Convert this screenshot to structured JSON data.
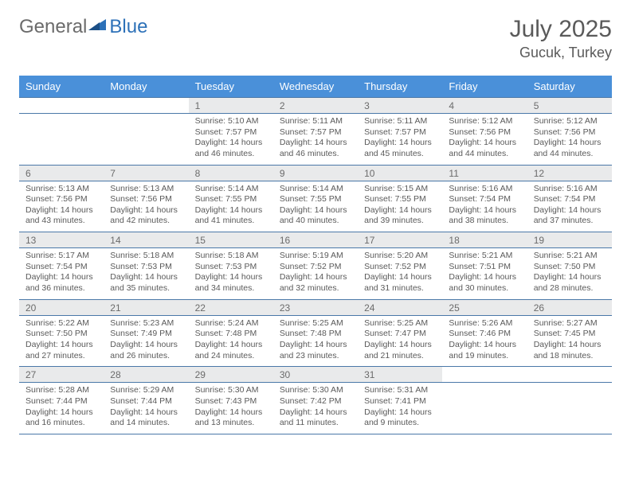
{
  "logo": {
    "text_left": "General",
    "text_right": "Blue"
  },
  "title": "July 2025",
  "location": "Gucuk, Turkey",
  "colors": {
    "header_bg": "#4a90d9",
    "header_text": "#ffffff",
    "daynum_bg": "#e9eaeb",
    "border": "#4a78a8",
    "text": "#5a5a5a",
    "logo_gray": "#6b6b6b",
    "logo_blue": "#2d71b8"
  },
  "weekdays": [
    "Sunday",
    "Monday",
    "Tuesday",
    "Wednesday",
    "Thursday",
    "Friday",
    "Saturday"
  ],
  "weeks": [
    [
      null,
      null,
      {
        "n": "1",
        "sr": "5:10 AM",
        "ss": "7:57 PM",
        "dl": "14 hours and 46 minutes."
      },
      {
        "n": "2",
        "sr": "5:11 AM",
        "ss": "7:57 PM",
        "dl": "14 hours and 46 minutes."
      },
      {
        "n": "3",
        "sr": "5:11 AM",
        "ss": "7:57 PM",
        "dl": "14 hours and 45 minutes."
      },
      {
        "n": "4",
        "sr": "5:12 AM",
        "ss": "7:56 PM",
        "dl": "14 hours and 44 minutes."
      },
      {
        "n": "5",
        "sr": "5:12 AM",
        "ss": "7:56 PM",
        "dl": "14 hours and 44 minutes."
      }
    ],
    [
      {
        "n": "6",
        "sr": "5:13 AM",
        "ss": "7:56 PM",
        "dl": "14 hours and 43 minutes."
      },
      {
        "n": "7",
        "sr": "5:13 AM",
        "ss": "7:56 PM",
        "dl": "14 hours and 42 minutes."
      },
      {
        "n": "8",
        "sr": "5:14 AM",
        "ss": "7:55 PM",
        "dl": "14 hours and 41 minutes."
      },
      {
        "n": "9",
        "sr": "5:14 AM",
        "ss": "7:55 PM",
        "dl": "14 hours and 40 minutes."
      },
      {
        "n": "10",
        "sr": "5:15 AM",
        "ss": "7:55 PM",
        "dl": "14 hours and 39 minutes."
      },
      {
        "n": "11",
        "sr": "5:16 AM",
        "ss": "7:54 PM",
        "dl": "14 hours and 38 minutes."
      },
      {
        "n": "12",
        "sr": "5:16 AM",
        "ss": "7:54 PM",
        "dl": "14 hours and 37 minutes."
      }
    ],
    [
      {
        "n": "13",
        "sr": "5:17 AM",
        "ss": "7:54 PM",
        "dl": "14 hours and 36 minutes."
      },
      {
        "n": "14",
        "sr": "5:18 AM",
        "ss": "7:53 PM",
        "dl": "14 hours and 35 minutes."
      },
      {
        "n": "15",
        "sr": "5:18 AM",
        "ss": "7:53 PM",
        "dl": "14 hours and 34 minutes."
      },
      {
        "n": "16",
        "sr": "5:19 AM",
        "ss": "7:52 PM",
        "dl": "14 hours and 32 minutes."
      },
      {
        "n": "17",
        "sr": "5:20 AM",
        "ss": "7:52 PM",
        "dl": "14 hours and 31 minutes."
      },
      {
        "n": "18",
        "sr": "5:21 AM",
        "ss": "7:51 PM",
        "dl": "14 hours and 30 minutes."
      },
      {
        "n": "19",
        "sr": "5:21 AM",
        "ss": "7:50 PM",
        "dl": "14 hours and 28 minutes."
      }
    ],
    [
      {
        "n": "20",
        "sr": "5:22 AM",
        "ss": "7:50 PM",
        "dl": "14 hours and 27 minutes."
      },
      {
        "n": "21",
        "sr": "5:23 AM",
        "ss": "7:49 PM",
        "dl": "14 hours and 26 minutes."
      },
      {
        "n": "22",
        "sr": "5:24 AM",
        "ss": "7:48 PM",
        "dl": "14 hours and 24 minutes."
      },
      {
        "n": "23",
        "sr": "5:25 AM",
        "ss": "7:48 PM",
        "dl": "14 hours and 23 minutes."
      },
      {
        "n": "24",
        "sr": "5:25 AM",
        "ss": "7:47 PM",
        "dl": "14 hours and 21 minutes."
      },
      {
        "n": "25",
        "sr": "5:26 AM",
        "ss": "7:46 PM",
        "dl": "14 hours and 19 minutes."
      },
      {
        "n": "26",
        "sr": "5:27 AM",
        "ss": "7:45 PM",
        "dl": "14 hours and 18 minutes."
      }
    ],
    [
      {
        "n": "27",
        "sr": "5:28 AM",
        "ss": "7:44 PM",
        "dl": "14 hours and 16 minutes."
      },
      {
        "n": "28",
        "sr": "5:29 AM",
        "ss": "7:44 PM",
        "dl": "14 hours and 14 minutes."
      },
      {
        "n": "29",
        "sr": "5:30 AM",
        "ss": "7:43 PM",
        "dl": "14 hours and 13 minutes."
      },
      {
        "n": "30",
        "sr": "5:30 AM",
        "ss": "7:42 PM",
        "dl": "14 hours and 11 minutes."
      },
      {
        "n": "31",
        "sr": "5:31 AM",
        "ss": "7:41 PM",
        "dl": "14 hours and 9 minutes."
      },
      null,
      null
    ]
  ],
  "labels": {
    "sunrise": "Sunrise:",
    "sunset": "Sunset:",
    "daylight": "Daylight:"
  }
}
